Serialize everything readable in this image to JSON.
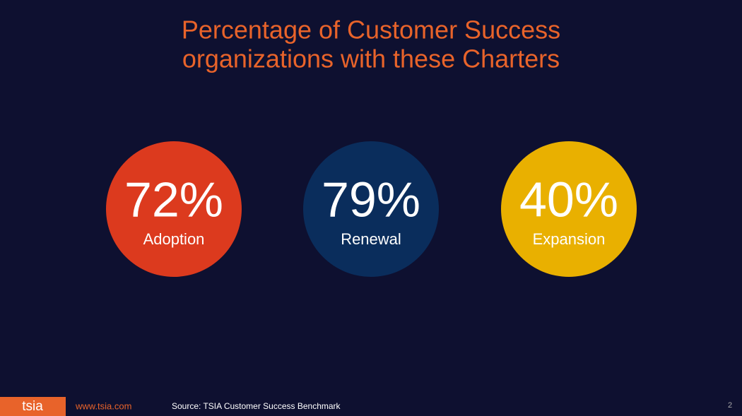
{
  "title": [
    "Percentage of Customer Success",
    "organizations with these Charters"
  ],
  "stats": [
    {
      "value": "72%",
      "label": "Adoption",
      "color": "#dc3a1e"
    },
    {
      "value": "79%",
      "label": "Renewal",
      "color": "#0a2d5c"
    },
    {
      "value": "40%",
      "label": "Expansion",
      "color": "#e9b000"
    }
  ],
  "footer": {
    "logo": "tsia",
    "url": "www.tsia.com",
    "source": "Source: TSIA Customer Success Benchmark",
    "page": "2"
  }
}
